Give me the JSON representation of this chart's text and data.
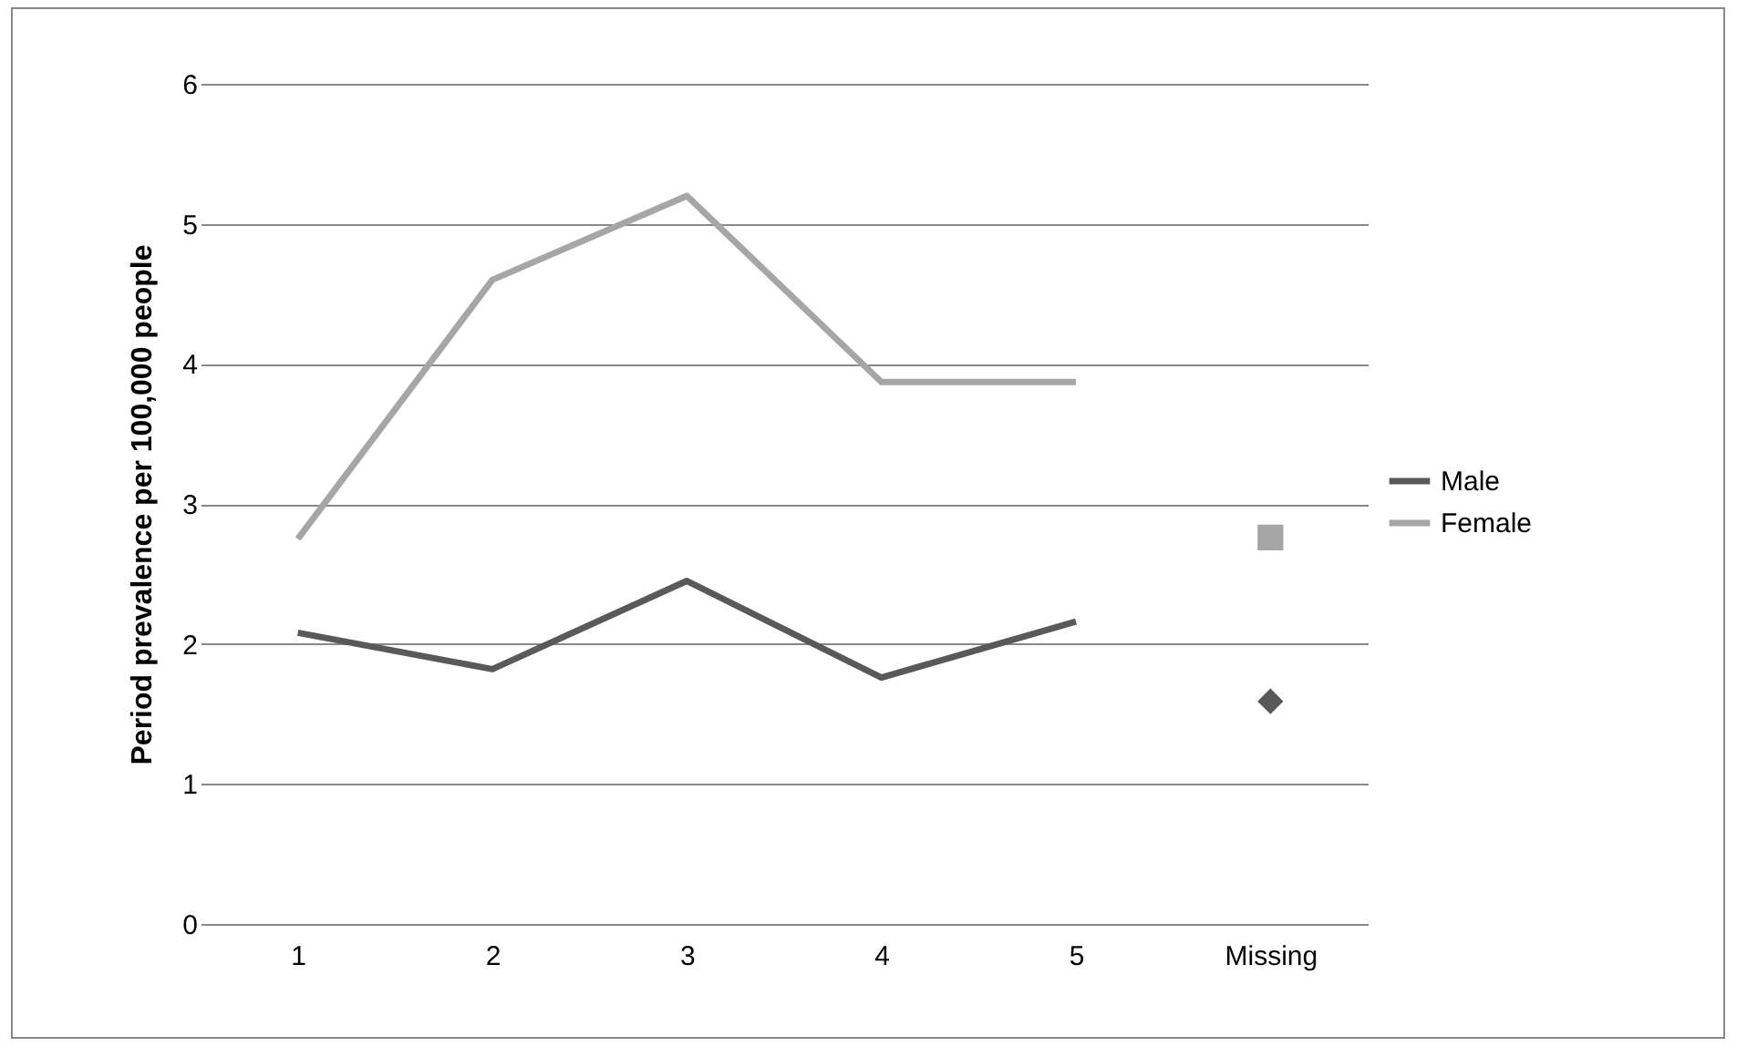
{
  "chart_data": {
    "type": "line",
    "ylabel": "Period prevalence per 100,000 people",
    "categories": [
      "1",
      "2",
      "3",
      "4",
      "5",
      "Missing"
    ],
    "series": [
      {
        "name": "Male",
        "color": "#595959",
        "values": [
          2.08,
          1.82,
          2.45,
          1.76,
          2.16,
          null
        ]
      },
      {
        "name": "Female",
        "color": "#a6a6a6",
        "values": [
          2.75,
          4.6,
          5.2,
          3.87,
          3.87,
          null
        ]
      },
      {
        "type": "scatter",
        "marker": "square",
        "color": "#a6a6a6",
        "values": [
          null,
          null,
          null,
          null,
          null,
          2.76
        ]
      },
      {
        "type": "scatter",
        "marker": "diamond",
        "color": "#595959",
        "values": [
          null,
          null,
          null,
          null,
          null,
          1.59
        ]
      }
    ],
    "ylim": [
      0,
      6
    ],
    "yticks": [
      0,
      1,
      2,
      3,
      4,
      5,
      6
    ],
    "grid": "y",
    "legend": "right"
  }
}
